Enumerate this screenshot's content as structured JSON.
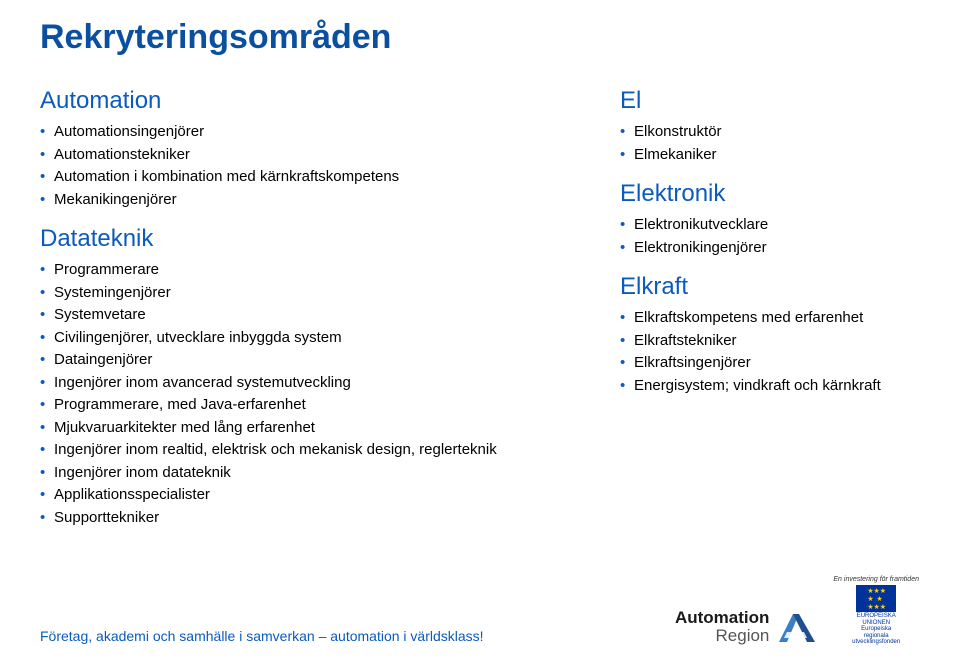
{
  "title": "Rekryteringsområden",
  "left": {
    "sections": [
      {
        "heading": "Automation",
        "items": [
          "Automationsingenjörer",
          "Automationstekniker",
          "Automation i kombination med kärnkraftskompetens",
          "Mekanikingenjörer"
        ]
      },
      {
        "heading": "Datateknik",
        "items": [
          "Programmerare",
          "Systemingenjörer",
          "Systemvetare",
          "Civilingenjörer, utvecklare inbyggda system",
          "Dataingenjörer",
          "Ingenjörer inom avancerad systemutveckling",
          "Programmerare, med Java-erfarenhet",
          "Mjukvaruarkitekter med lång erfarenhet",
          "Ingenjörer inom realtid, elektrisk och mekanisk design, reglerteknik",
          "Ingenjörer inom datateknik",
          "Applikationsspecialister",
          "Supporttekniker"
        ]
      }
    ]
  },
  "right": {
    "sections": [
      {
        "heading": "El",
        "items": [
          "Elkonstruktör",
          "Elmekaniker"
        ]
      },
      {
        "heading": "Elektronik",
        "items": [
          "Elektronikutvecklare",
          "Elektronikingenjörer"
        ]
      },
      {
        "heading": "Elkraft",
        "items": [
          "Elkraftskompetens med erfarenhet",
          "Elkraftstekniker",
          "Elkraftsingenjörer",
          "Energisystem; vindkraft och kärnkraft"
        ]
      }
    ]
  },
  "footer": "Företag, akademi och samhälle i samverkan – automation i världsklass!",
  "logo": {
    "line1": "Automation",
    "line2": "Region"
  },
  "eu": {
    "top": "En investering för framtiden",
    "org1": "EUROPEISKA",
    "org2": "UNIONEN",
    "sub1": "Europeiska",
    "sub2": "regionala",
    "sub3": "utvecklingsfonden"
  },
  "colors": {
    "title": "#0b4fa0",
    "heading": "#0b5bbf",
    "bullet": "#0b5bbf",
    "text": "#000000",
    "footer": "#0b5bbf",
    "eu_bg": "#003399",
    "eu_star": "#ffcc00"
  }
}
